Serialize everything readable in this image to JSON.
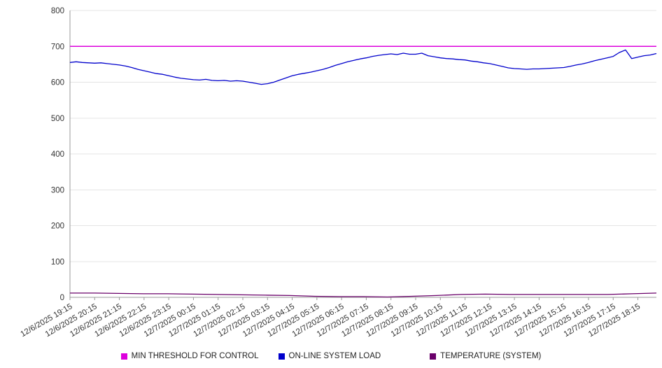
{
  "chart_data": {
    "type": "line",
    "title": "",
    "xlabel": "",
    "ylabel": "",
    "ylim": [
      0,
      800
    ],
    "y_ticks": [
      0,
      100,
      200,
      300,
      400,
      500,
      600,
      700,
      800
    ],
    "grid": true,
    "legend_position": "bottom",
    "sample_count": 96,
    "samples_per_label": 4,
    "x_labels": [
      "12/6/2025 19:15",
      "12/6/2025 20:15",
      "12/6/2025 21:15",
      "12/6/2025 22:15",
      "12/6/2025 23:15",
      "12/7/2025 00:15",
      "12/7/2025 01:15",
      "12/7/2025 02:15",
      "12/7/2025 03:15",
      "12/7/2025 04:15",
      "12/7/2025 05:15",
      "12/7/2025 06:15",
      "12/7/2025 07:15",
      "12/7/2025 08:15",
      "12/7/2025 09:15",
      "12/7/2025 10:15",
      "12/7/2025 11:15",
      "12/7/2025 12:15",
      "12/7/2025 13:15",
      "12/7/2025 14:15",
      "12/7/2025 15:15",
      "12/7/2025 16:15",
      "12/7/2025 17:15",
      "12/7/2025 18:15"
    ],
    "series": [
      {
        "name": "MIN THRESHOLD FOR CONTROL",
        "color": "#dd00dd",
        "type": "constant",
        "value": 700
      },
      {
        "name": "ON-LINE SYSTEM LOAD",
        "color": "#0000cc",
        "type": "line",
        "values": [
          655,
          657,
          655,
          654,
          653,
          654,
          652,
          650,
          648,
          645,
          641,
          636,
          632,
          628,
          624,
          622,
          618,
          614,
          611,
          609,
          607,
          606,
          608,
          605,
          604,
          605,
          603,
          604,
          603,
          600,
          597,
          594,
          596,
          600,
          606,
          612,
          618,
          622,
          625,
          628,
          632,
          636,
          641,
          647,
          652,
          657,
          661,
          665,
          668,
          672,
          675,
          677,
          679,
          677,
          681,
          678,
          678,
          681,
          674,
          671,
          668,
          666,
          665,
          663,
          662,
          659,
          657,
          654,
          652,
          648,
          644,
          640,
          638,
          637,
          636,
          637,
          637,
          638,
          639,
          640,
          641,
          644,
          648,
          651,
          655,
          660,
          664,
          668,
          672,
          683,
          690,
          666,
          670,
          674,
          676,
          680
        ]
      },
      {
        "name": "TEMPERATURE (SYSTEM)",
        "color": "#6a006a",
        "type": "line",
        "values": [
          12,
          12,
          11,
          10,
          10,
          9,
          8,
          7,
          6,
          5,
          3,
          2,
          2,
          1,
          3,
          5,
          8,
          9,
          8,
          8,
          8,
          8,
          8,
          10,
          12
        ]
      }
    ]
  }
}
